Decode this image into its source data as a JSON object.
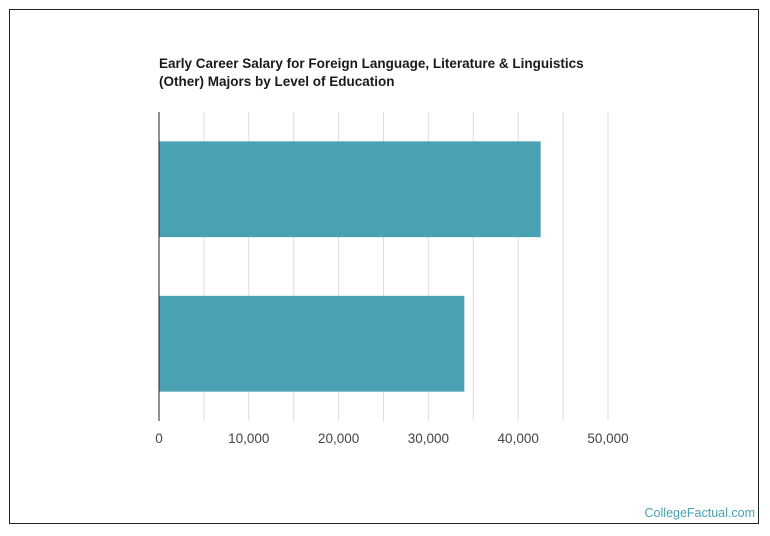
{
  "chart_data": {
    "type": "bar",
    "orientation": "horizontal",
    "title_lines": [
      "Early Career Salary for Foreign Language, Literature & Linguistics",
      "(Other) Majors by Level of Education"
    ],
    "categories": [
      "",
      ""
    ],
    "values": [
      42500,
      34000
    ],
    "xlim": [
      0,
      50000
    ],
    "x_ticks": [
      0,
      10000,
      20000,
      30000,
      40000,
      50000
    ],
    "x_tick_labels": [
      "0",
      "10,000",
      "20,000",
      "30,000",
      "40,000",
      "50,000"
    ],
    "grid": true,
    "bar_color": "#4aa1b3",
    "grid_color": "#dddddd",
    "axis_color": "#222222"
  },
  "footer": {
    "brand": "CollegeFactual.com"
  },
  "colors": {
    "brand": "#4aa0b4"
  }
}
